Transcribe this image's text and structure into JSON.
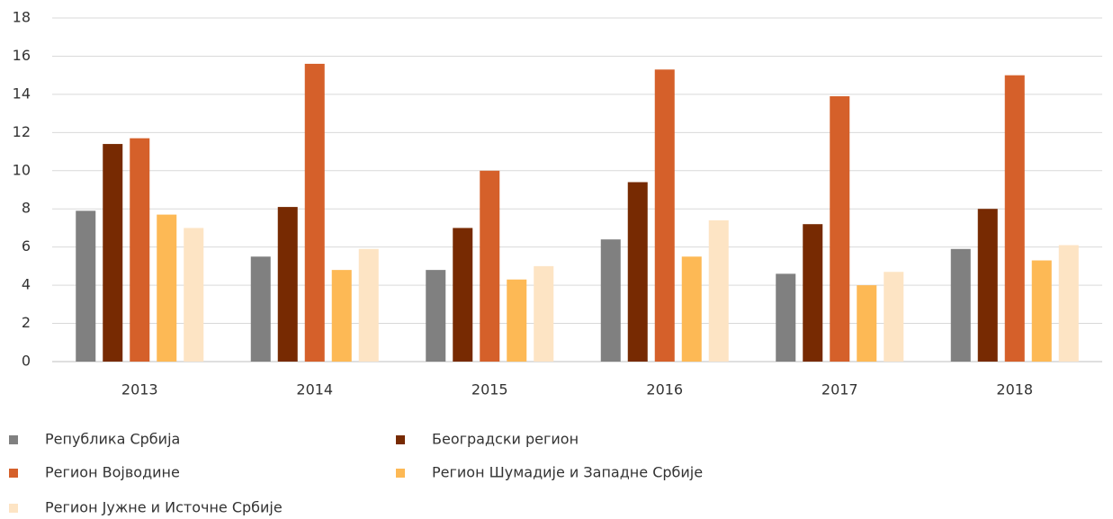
{
  "chart_data": {
    "type": "bar",
    "categories": [
      "2013",
      "2014",
      "2015",
      "2016",
      "2017",
      "2018"
    ],
    "series": [
      {
        "name": "Република Србија",
        "color": "#808080",
        "values": [
          7.9,
          5.5,
          4.8,
          6.4,
          4.6,
          5.9
        ]
      },
      {
        "name": "Београдски регион",
        "color": "#772a02",
        "values": [
          11.4,
          8.1,
          7.0,
          9.4,
          7.2,
          8.0
        ]
      },
      {
        "name": "Регион Војводине",
        "color": "#d5602a",
        "values": [
          11.7,
          15.6,
          10.0,
          15.3,
          13.9,
          15.0
        ]
      },
      {
        "name": "Регион Шумадије и Западне Србије",
        "color": "#fdb955",
        "values": [
          7.7,
          4.8,
          4.3,
          5.5,
          4.0,
          5.3
        ]
      },
      {
        "name": "Регион Јужне и Источне Србије",
        "color": "#fde4c4",
        "values": [
          7.0,
          5.9,
          5.0,
          7.4,
          4.7,
          6.1
        ]
      }
    ],
    "ylim": [
      0,
      18
    ],
    "yticks": [
      0,
      2,
      4,
      6,
      8,
      10,
      12,
      14,
      16,
      18
    ],
    "grid": true,
    "legend": "bottom"
  }
}
